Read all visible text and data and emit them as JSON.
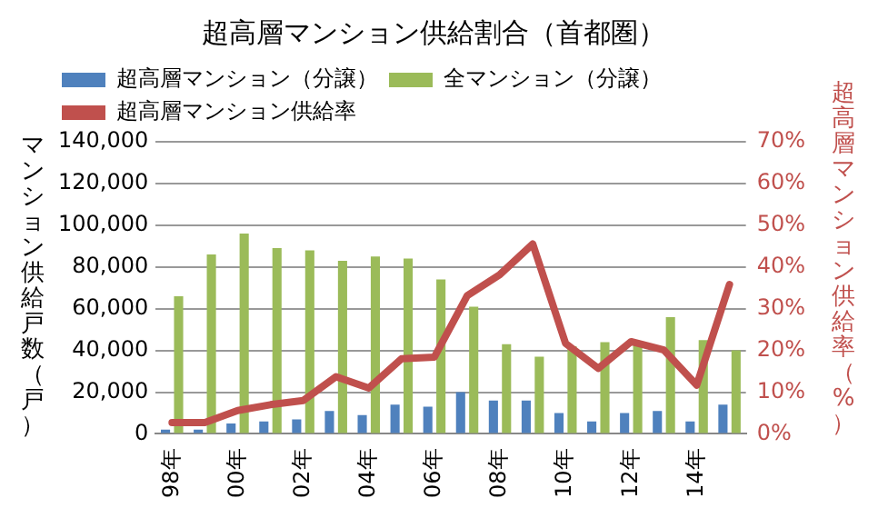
{
  "chart_data": {
    "type": "bar",
    "title": "超高層マンション供給割合（首都圏）",
    "ylabel": "マンション供給戸数（戸）",
    "y2label": "超高層マンション供給率（%）",
    "categories": [
      "98年",
      null,
      "00年",
      null,
      "02年",
      null,
      "04年",
      null,
      "06年",
      null,
      "08年",
      null,
      "10年",
      null,
      "12年",
      null,
      "14年",
      null
    ],
    "series": [
      {
        "name": "超高層マンション（分譲）",
        "color": "#4f81bd",
        "values": [
          2000,
          2000,
          5000,
          6000,
          7000,
          11000,
          9000,
          14000,
          13000,
          20000,
          16000,
          16000,
          10000,
          6000,
          10000,
          11000,
          6000,
          14000
        ]
      },
      {
        "name": "全マンション（分譲）",
        "color": "#9bbb59",
        "values": [
          66000,
          86000,
          96000,
          89000,
          88000,
          83000,
          85000,
          84000,
          74000,
          61000,
          43000,
          37000,
          42000,
          44000,
          44000,
          56000,
          45000,
          40000
        ]
      },
      {
        "name": "超高層マンション供給率",
        "type": "line",
        "axis": "y2",
        "color": "#c0504d",
        "values": [
          2.7,
          2.7,
          5.6,
          7.0,
          8.0,
          13.7,
          11.0,
          18.0,
          18.4,
          33.1,
          38.2,
          45.5,
          21.7,
          15.7,
          22.1,
          20.1,
          11.7,
          35.8
        ]
      }
    ],
    "ylim": [
      0,
      140000
    ],
    "yticks": [
      {
        "value": 0,
        "label": "0"
      },
      {
        "value": 20000,
        "label": "20,000"
      },
      {
        "value": 40000,
        "label": "40,000"
      },
      {
        "value": 60000,
        "label": "60,000"
      },
      {
        "value": 80000,
        "label": "80,000"
      },
      {
        "value": 100000,
        "label": "100,000"
      },
      {
        "value": 120000,
        "label": "120,000"
      },
      {
        "value": 140000,
        "label": "140,000"
      }
    ],
    "y2lim": [
      0,
      70
    ],
    "y2ticks": [
      {
        "value": 0,
        "label": "0%"
      },
      {
        "value": 10,
        "label": "10%"
      },
      {
        "value": 20,
        "label": "20%"
      },
      {
        "value": 30,
        "label": "30%"
      },
      {
        "value": 40,
        "label": "40%"
      },
      {
        "value": 50,
        "label": "50%"
      },
      {
        "value": 60,
        "label": "60%"
      },
      {
        "value": 70,
        "label": "70%"
      }
    ],
    "grid": "y",
    "legend": "top",
    "marker": "none",
    "line_style": "solid"
  }
}
